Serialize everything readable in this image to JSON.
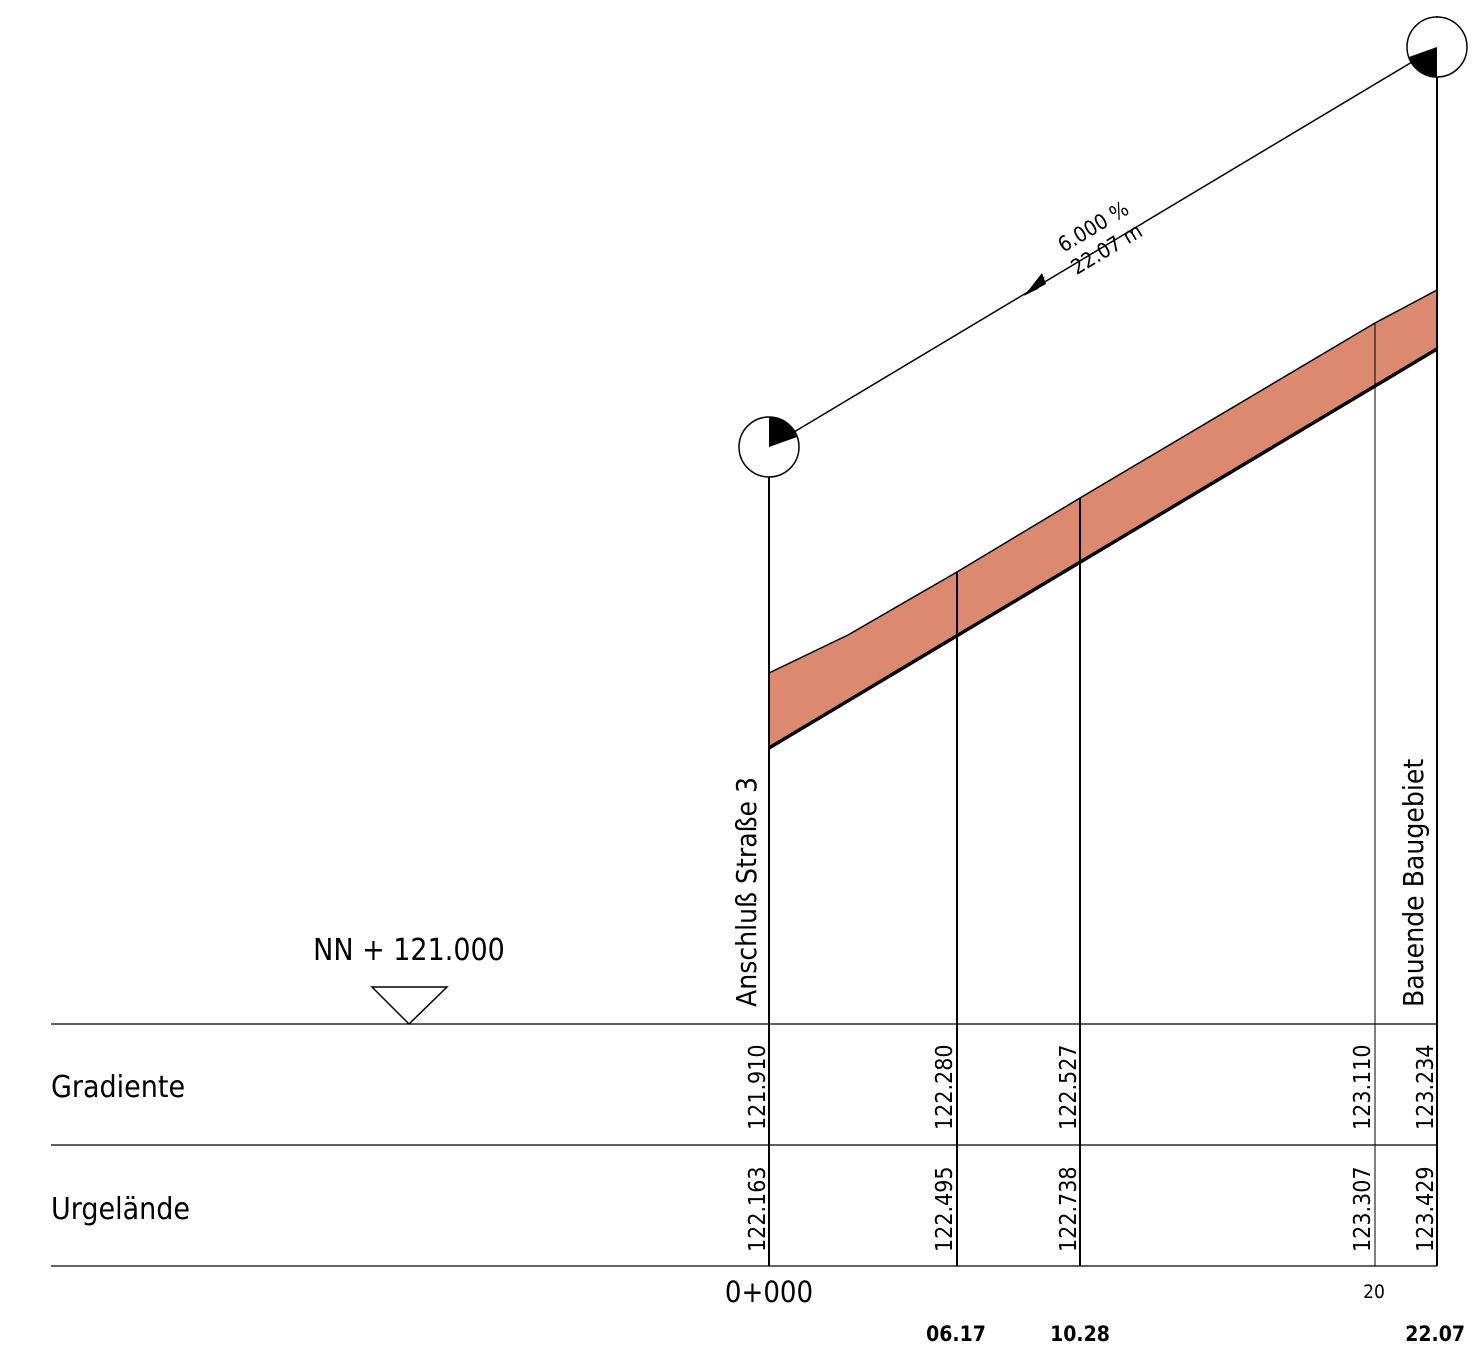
{
  "datum": "NN + 121.000",
  "row_labels": [
    "Gradiente",
    "Urgelände"
  ],
  "start_label": "Anschluß Straße 3",
  "end_label": "Bauende Baugebiet",
  "slope": {
    "grade": "6.000 %",
    "length": "22.07 m"
  },
  "station_start": "0+000",
  "stations": [
    {
      "gradient": "121.910",
      "terrain": "122.163",
      "station": ""
    },
    {
      "gradient": "122.280",
      "terrain": "122.495",
      "station": "06.17"
    },
    {
      "gradient": "122.527",
      "terrain": "122.738",
      "station": "10.28"
    },
    {
      "gradient": "123.110",
      "terrain": "123.307",
      "station": "20"
    },
    {
      "gradient": "123.234",
      "terrain": "123.429",
      "station": "22.07"
    }
  ],
  "colors": {
    "fill_band": "#dc8a6f",
    "line": "#000000"
  }
}
